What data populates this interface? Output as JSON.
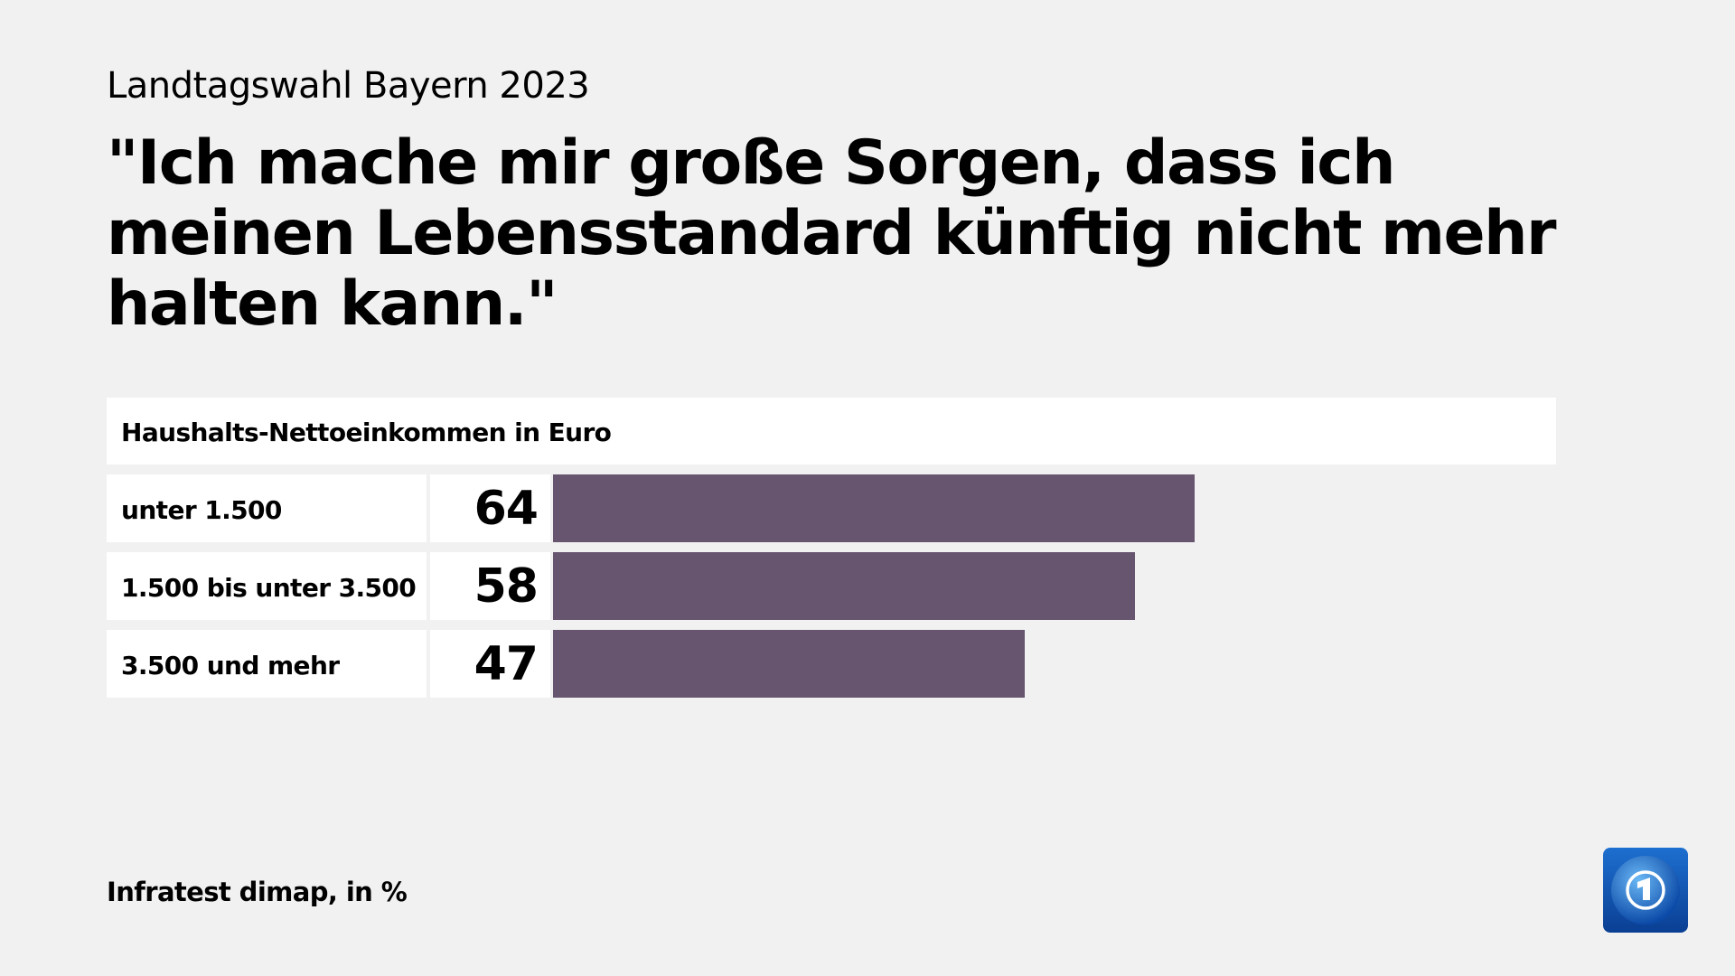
{
  "supertitle": "Landtagswahl Bayern 2023",
  "title": "\"Ich mache mir große Sorgen, dass ich meinen Lebensstandard künftig nicht mehr halten kann.\"",
  "footer": "Infratest dimap, in %",
  "logo": {
    "icon": "tagesschau-logo",
    "text": "1"
  },
  "colors": {
    "bar": "#67546e",
    "background": "#f1f1f1"
  },
  "chart_data": {
    "type": "bar",
    "orientation": "horizontal",
    "title": "\"Ich mache mir große Sorgen, dass ich meinen Lebensstandard künftig nicht mehr halten kann.\"",
    "group_label": "Haushalts-Nettoeinkommen in Euro",
    "categories": [
      "unter 1.500",
      "1.500 bis unter 3.500",
      "3.500 und mehr"
    ],
    "values": [
      64,
      58,
      47
    ],
    "unit": "%",
    "xlim": [
      0,
      100
    ],
    "grid": false
  }
}
